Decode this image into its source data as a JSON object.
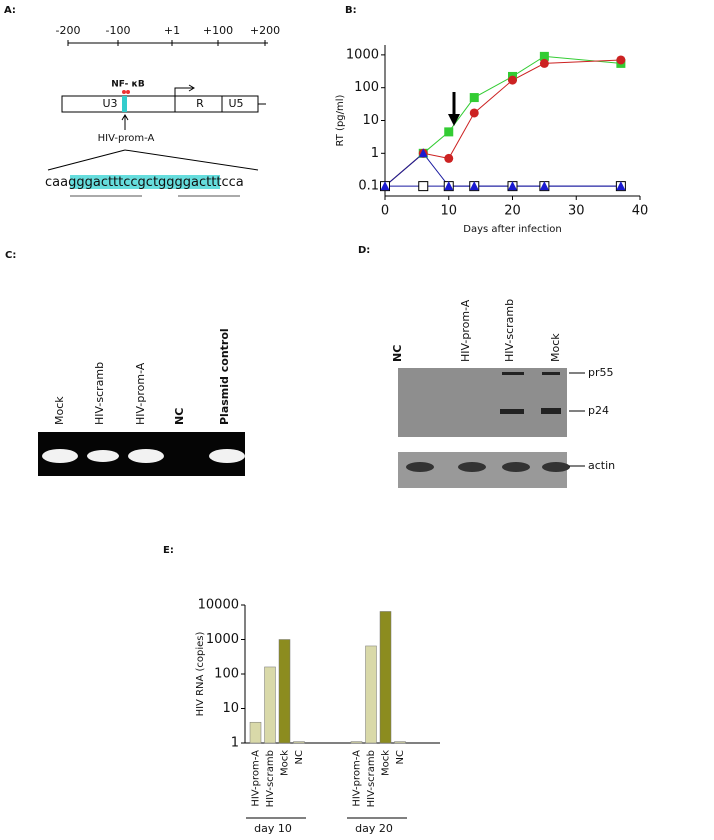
{
  "panels": {
    "a": {
      "label": "A:",
      "scale_ticks": [
        "-200",
        "-100",
        "+1",
        "+100",
        "+200"
      ],
      "site": "NF- κB",
      "regions": [
        "U3",
        "R",
        "U5"
      ],
      "target": "HIV-prom-A",
      "sequence": [
        "caa",
        "gggactttccgctggggact",
        "ttcca"
      ]
    },
    "c": {
      "label": "C:",
      "lanes": [
        "Mock",
        "HIV-scramb",
        "HIV-prom-A",
        "NC",
        "Plasmid control"
      ]
    },
    "d": {
      "label": "D:",
      "lanes": [
        "NC",
        "HIV-prom-A",
        "HIV-scramb",
        "Mock"
      ],
      "bands": [
        "pr55",
        "p24",
        "actin"
      ]
    },
    "b": {
      "label": "B:"
    },
    "e": {
      "label": "E:"
    }
  },
  "chart_data": [
    {
      "type": "line",
      "yscale": "log",
      "xlabel": "Days after infection",
      "ylabel": "RT (pg/ml)",
      "xlim": [
        0,
        40
      ],
      "xticks": [
        0,
        10,
        20,
        30,
        40
      ],
      "ylim": [
        0.05,
        2000
      ],
      "yticks": [
        0.1,
        1,
        10,
        100,
        1000
      ],
      "series": [
        {
          "color": "#33cc33",
          "marker": "square",
          "x": [
            0,
            6,
            10,
            14,
            20,
            25,
            37
          ],
          "values": [
            0.1,
            1,
            4.5,
            50,
            220,
            900,
            550
          ]
        },
        {
          "color": "#cc2222",
          "marker": "circle",
          "x": [
            0,
            6,
            10,
            14,
            20,
            25,
            37
          ],
          "values": [
            0.1,
            1,
            0.7,
            17,
            170,
            550,
            700
          ]
        },
        {
          "color": "#ffffff",
          "line_color": "#1a1aa0",
          "marker": "square",
          "x": [
            0,
            6,
            10,
            14,
            20,
            25,
            37
          ],
          "values": [
            0.1,
            0.1,
            0.1,
            0.1,
            0.1,
            0.1,
            0.1
          ]
        },
        {
          "color": "#1a1ad0",
          "line_color": "#1a1aa0",
          "marker": "triangle",
          "x": [
            0,
            6,
            10,
            14,
            20,
            25,
            37
          ],
          "values": [
            0.1,
            1,
            0.1,
            0.1,
            0.1,
            0.1,
            0.1
          ]
        }
      ]
    },
    {
      "type": "bar",
      "yscale": "log",
      "ylabel": "HIV RNA (copies)",
      "ylim": [
        1,
        10000
      ],
      "yticks": [
        1,
        10,
        100,
        1000,
        10000
      ],
      "groups": [
        "day 10",
        "day 20"
      ],
      "categories": [
        "HIV-prom-A",
        "HIV-scramb",
        "Mock",
        "NC",
        "HIV-prom-A",
        "HIV-scramb",
        "Mock",
        "NC"
      ],
      "values": [
        4,
        160,
        1000,
        1.1,
        1.1,
        650,
        6500,
        1.1
      ],
      "colors": [
        "#d9d9a9",
        "#d9d9a9",
        "#8c8c1f",
        "#d9d9a9",
        "#d9d9a9",
        "#d9d9a9",
        "#8c8c1f",
        "#d9d9a9"
      ]
    }
  ]
}
